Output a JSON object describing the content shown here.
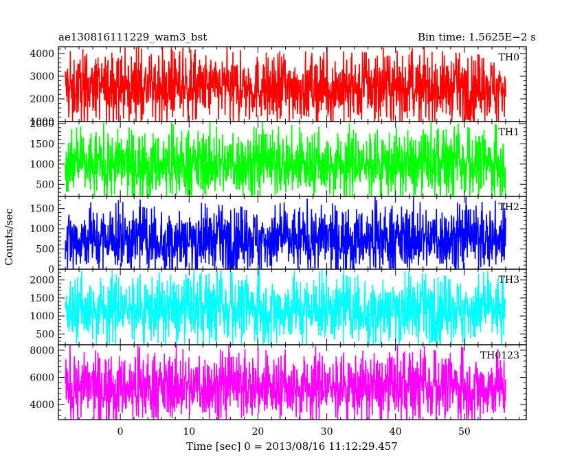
{
  "chart_data": {
    "type": "line",
    "title_left": "ae130816111229_wam3_bst",
    "title_right": "Bin time: 1.5625E−2 s",
    "xlabel": "Time [sec] 0 = 2013/08/16 11:12:29.457",
    "ylabel": "Counts/sec",
    "xlim": [
      -9,
      59
    ],
    "x_range": [
      -8,
      56
    ],
    "x_ticks": [
      0,
      10,
      20,
      30,
      40,
      50
    ],
    "x_tick_labels": [
      "0",
      "10",
      "20",
      "30",
      "40",
      "50"
    ],
    "grid": false,
    "panels": [
      {
        "name": "TH0",
        "color": "#ff0000",
        "ylim": [
          1000,
          4300
        ],
        "yticks": [
          1000,
          2000,
          3000,
          4000
        ],
        "ytick_labels": [
          "1000",
          "2000",
          "3000",
          "4000"
        ],
        "typical": 2500,
        "envelope": [
          1000,
          4300
        ]
      },
      {
        "name": "TH1",
        "color": "#00ff00",
        "ylim": [
          200,
          2050
        ],
        "yticks": [
          500,
          1000,
          1500,
          2000
        ],
        "ytick_labels": [
          "500",
          "1000",
          "1500",
          "2000"
        ],
        "typical": 1000,
        "envelope": [
          200,
          2050
        ]
      },
      {
        "name": "TH2",
        "color": "#0000ff",
        "ylim": [
          0,
          1800
        ],
        "yticks": [
          0,
          500,
          1000,
          1500
        ],
        "ytick_labels": [
          "0",
          "500",
          "1000",
          "1500"
        ],
        "typical": 750,
        "envelope": [
          0,
          1800
        ]
      },
      {
        "name": "TH3",
        "color": "#00ffff",
        "ylim": [
          200,
          2300
        ],
        "yticks": [
          500,
          1000,
          1500,
          2000
        ],
        "ytick_labels": [
          "500",
          "1000",
          "1500",
          "2000"
        ],
        "typical": 1200,
        "envelope": [
          200,
          2300
        ]
      },
      {
        "name": "TH0123",
        "color": "#ff00ff",
        "ylim": [
          2900,
          8400
        ],
        "yticks": [
          4000,
          6000,
          8000
        ],
        "ytick_labels": [
          "4000",
          "6000",
          "8000"
        ],
        "typical": 5300,
        "envelope": [
          2900,
          8400
        ]
      }
    ]
  }
}
